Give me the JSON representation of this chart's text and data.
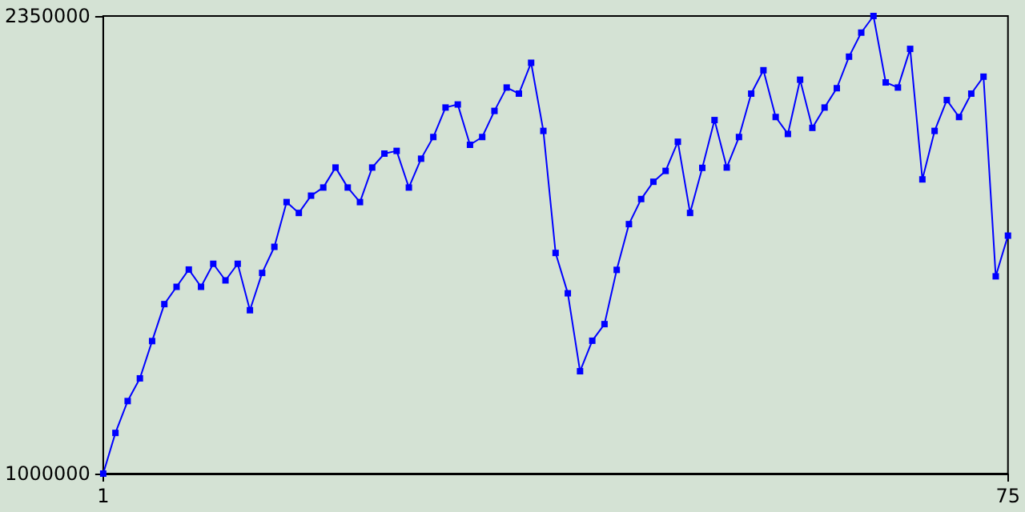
{
  "chart_data": {
    "type": "line",
    "x": [
      1,
      2,
      3,
      4,
      5,
      6,
      7,
      8,
      9,
      10,
      11,
      12,
      13,
      14,
      15,
      16,
      17,
      18,
      19,
      20,
      21,
      22,
      23,
      24,
      25,
      26,
      27,
      28,
      29,
      30,
      31,
      32,
      33,
      34,
      35,
      36,
      37,
      38,
      39,
      40,
      41,
      42,
      43,
      44,
      45,
      46,
      47,
      48,
      49,
      50,
      51,
      52,
      53,
      54,
      55,
      56,
      57,
      58,
      59,
      60,
      61,
      62,
      63,
      64,
      65,
      66,
      67,
      68,
      69,
      70,
      71,
      72,
      73,
      74,
      75
    ],
    "series": [
      {
        "color": "#0000ff",
        "values": [
          1000000,
          1120000,
          1214000,
          1281000,
          1391000,
          1500000,
          1551000,
          1602000,
          1551000,
          1619000,
          1570000,
          1619000,
          1482000,
          1592000,
          1669000,
          1801000,
          1769000,
          1820000,
          1844000,
          1903000,
          1844000,
          1801000,
          1903000,
          1944000,
          1952000,
          1844000,
          1929000,
          1993000,
          2080000,
          2089000,
          1970000,
          1993000,
          2070000,
          2139000,
          2121000,
          2212000,
          2011000,
          1651000,
          1532000,
          1302000,
          1392000,
          1441000,
          1601000,
          1736000,
          1810000,
          1861000,
          1893000,
          1979000,
          1769000,
          1902000,
          2043000,
          1903000,
          1993000,
          2121000,
          2190000,
          2052000,
          2002000,
          2162000,
          2020000,
          2080000,
          2137000,
          2230000,
          2301000,
          2350000,
          2154000,
          2139000,
          2253000,
          1868000,
          2011000,
          2102000,
          2052000,
          2121000,
          2171000,
          1582000,
          1702000
        ]
      }
    ],
    "xlim": [
      1,
      75
    ],
    "xticks": [
      1,
      75
    ],
    "ylim": [
      1000000,
      2350000
    ],
    "yticks": [
      1000000,
      2350000
    ],
    "grid": false,
    "marker": "square",
    "line_style": "solid"
  }
}
